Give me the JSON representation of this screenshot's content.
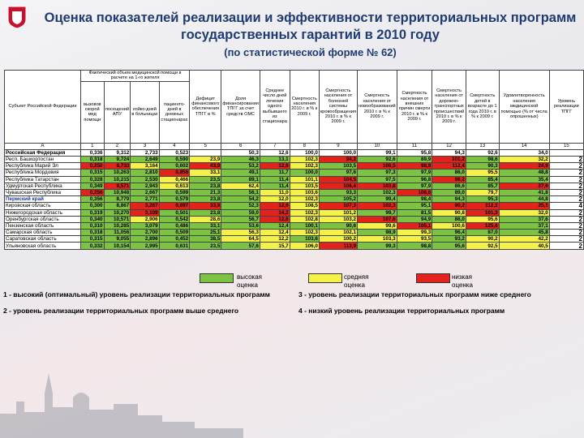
{
  "header": {
    "title": "Оценка показателей реализации и эффективности территориальных программ государственных гарантий в 2010 году",
    "subtitle": "(по статистической форме № 62)"
  },
  "table": {
    "subject_header": "Субъект Российской Федерации",
    "group_header": "Фактический объем медицинской помощи в расчете на 1-го жителя",
    "column_headers": [
      "вызовов скорой мед помощи",
      "посещений АПУ",
      "койко-дней в больницах",
      "пациенто-дней в дневных стационарах",
      "Дефицит финансового обеспечения ТПГГ в %",
      "Доля финансирования ТПГГ за счет средств ОМС",
      "Среднее число дней лечения одного выбывшего из стационара",
      "Смертность населения 2010 г. в % к 2009 г.",
      "Смертность населения от болезней системы кровообращения 2010 г. в % к 2009 г.",
      "Смертность населения от новообразований 2010 г. в % к 2009 г.",
      "Смертность населения от внешних причин смерти 2010 г. в % к 2009 г.",
      "Смертность населения от дорожно-транспортных происшествий 2010 г. в % к 2009 г.",
      "Смертность детей в возрасте до 1 года 2010 г. в % к 2009 г.",
      "Удовлетворенность населения медицинской помощью (% от числа опрошенных)",
      "Уровень реализации ТПГГ"
    ],
    "column_numbers": [
      "А",
      "1",
      "2",
      "3",
      "4",
      "5",
      "6",
      "7",
      "8",
      "9",
      "10",
      "11",
      "12",
      "13",
      "14",
      "15"
    ],
    "rows": [
      {
        "subject": "Российская Федерация",
        "cells": [
          "0,336",
          "9,312",
          "2,733",
          "0,523",
          null,
          "50,3",
          "12,6",
          "100,0",
          "100,0",
          "99,1",
          "95,8",
          "94,3",
          "92,6",
          "34,0",
          null
        ]
      },
      {
        "subject": "Респ. Башкортостан",
        "cells": [
          "0,318",
          "9,724",
          "2,649",
          "0,590",
          "23,9",
          "46,3",
          "13,1",
          "102,3",
          "94,2",
          "92,6",
          "89,9",
          "101,2",
          "98,6",
          "32,2",
          "2"
        ]
      },
      {
        "subject": "Республика Марий Эл",
        "cells": [
          "0,250",
          "8,730",
          "3,164",
          "0,602",
          "43,9",
          "53,2",
          "12,6",
          "102,3",
          "103,5",
          "106,5",
          "98,9",
          "112,4",
          "90,3",
          "24,9",
          "2"
        ]
      },
      {
        "subject": "Республика Мордовия",
        "cells": [
          "0,315",
          "10,263",
          "2,810",
          "0,856",
          "33,1",
          "49,1",
          "11,7",
          "100,0",
          "97,6",
          "97,3",
          "97,9",
          "86,0",
          "95,5",
          "48,8",
          "2"
        ]
      },
      {
        "subject": "Республика Татарстан",
        "cells": [
          "0,328",
          "10,215",
          "2,530",
          "0,466",
          "23,5",
          "89,1",
          "11,4",
          "101,1",
          "104,5",
          "97,5",
          "96,8",
          "96,2",
          "85,4",
          "35,4",
          "2"
        ]
      },
      {
        "subject": "Удмуртская Республика",
        "cells": [
          "0,349",
          "9,571",
          "2,943",
          "0,613",
          "23,8",
          "62,4",
          "11,4",
          "103,5",
          "106,4",
          "103,8",
          "97,9",
          "86,6",
          "85,7",
          "27,6",
          "2"
        ]
      },
      {
        "subject": "Чувашская Республика",
        "cells": [
          "0,256",
          "10,948",
          "2,667",
          "0,599",
          "21,3",
          "56,1",
          "11,0",
          "103,6",
          "93,3",
          "102,3",
          "106,8",
          "89,0",
          "79,7",
          "41,8",
          "2"
        ]
      },
      {
        "subject": "Пермский край",
        "cells": [
          "0,356",
          "8,779",
          "2,771",
          "0,579",
          "23,8",
          "54,2",
          "12,0",
          "102,3",
          "105,2",
          "99,4",
          "98,4",
          "94,3",
          "95,3",
          "44,8",
          "2"
        ]
      },
      {
        "subject": "Кировская область",
        "cells": [
          "0,300",
          "8,867",
          "3,287",
          "0,697",
          "33,9",
          "52,3",
          "12,6",
          "108,5",
          "107,3",
          "102,3",
          "95,1",
          "90,2",
          "112,2",
          "25,1",
          "4"
        ]
      },
      {
        "subject": "Нижегородская область",
        "cells": [
          "0,319",
          "10,270",
          "3,109",
          "0,501",
          "23,8",
          "59,0",
          "14,2",
          "102,3",
          "101,2",
          "99,7",
          "81,5",
          "90,8",
          "101,3",
          "32,0",
          "2"
        ]
      },
      {
        "subject": "Оренбургская область",
        "cells": [
          "0,340",
          "10,571",
          "2,906",
          "0,542",
          "28,6",
          "56,7",
          "12,6",
          "102,8",
          "103,2",
          "107,6",
          "94,9",
          "86,0",
          "95,6",
          "37,6",
          "2"
        ]
      },
      {
        "subject": "Пензенская область",
        "cells": [
          "0,310",
          "10,285",
          "3,079",
          "0,486",
          "33,1",
          "53,6",
          "12,4",
          "100,1",
          "90,6",
          "99,6",
          "105,1",
          "100,6",
          "125,6",
          "37,1",
          "2"
        ]
      },
      {
        "subject": "Самарская область",
        "cells": [
          "0,318",
          "11,056",
          "2,700",
          "0,509",
          "25,1",
          "56,3",
          "12,4",
          "102,3",
          "102,1",
          "98,9",
          "99,3",
          "96,4",
          "87,0",
          "45,8",
          "2"
        ]
      },
      {
        "subject": "Саратовская область",
        "cells": [
          "0,315",
          "9,055",
          "2,896",
          "0,452",
          "38,5",
          "64,5",
          "12,2",
          "103,6",
          "100,2",
          "103,3",
          "93,5",
          "93,2",
          "90,2",
          "42,2",
          "2"
        ]
      },
      {
        "subject": "Ульяновская область",
        "cells": [
          "0,332",
          "10,154",
          "2,995",
          "0,631",
          "23,5",
          "57,6",
          "15,7",
          "106,0",
          "113,9",
          "99,3",
          "98,8",
          "95,6",
          "92,5",
          "40,5",
          "2"
        ]
      }
    ]
  },
  "legend": [
    {
      "label": "высокая оценка",
      "color": "#7cc243"
    },
    {
      "label": "средняя оценка",
      "color": "#f4f148"
    },
    {
      "label": "низкая оценка",
      "color": "#e3231b"
    }
  ],
  "notes": [
    "1 - высокий (оптимальный) уровень реализации территориальных программ",
    "2 - уровень реализации территориальных программ выше среднего",
    "3 - уровень реализации территориальных программ ниже среднего",
    "4 - низкий уровень реализации территориальных программ"
  ]
}
